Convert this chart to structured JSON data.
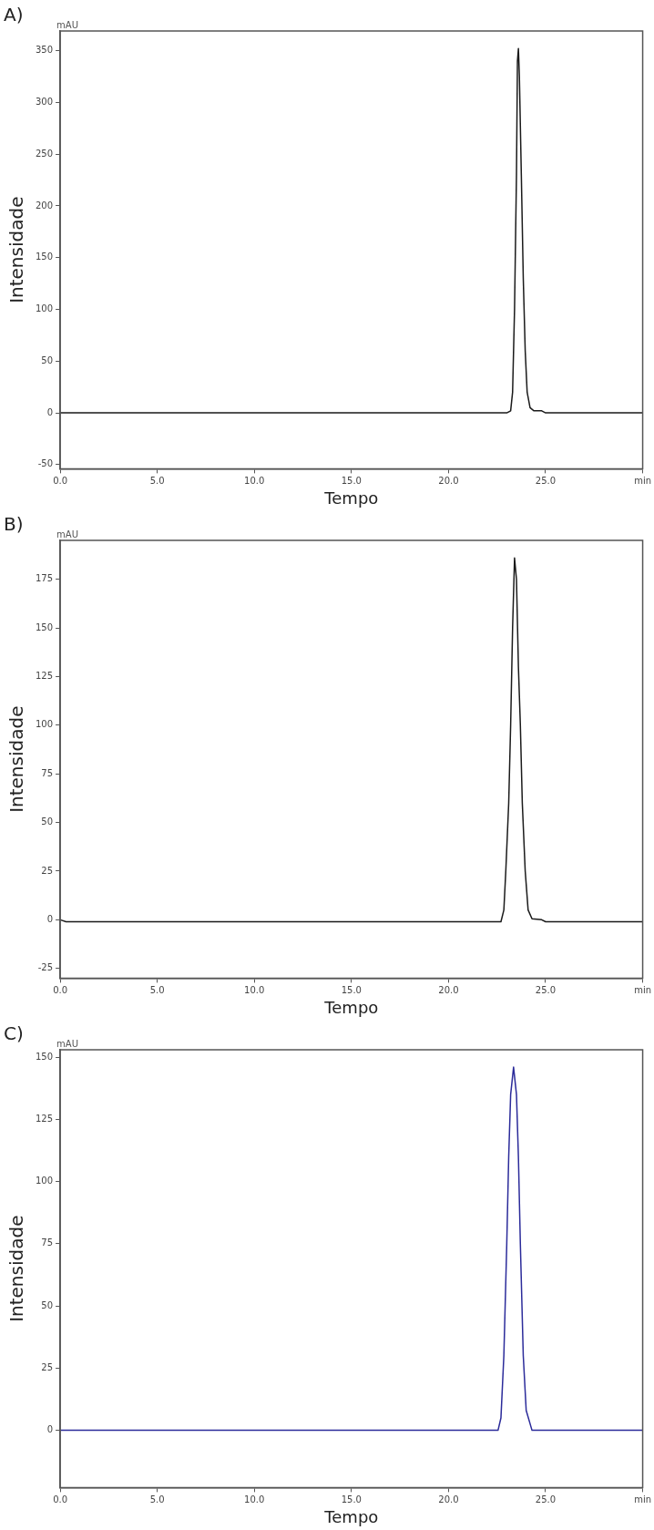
{
  "chart_data": [
    {
      "type": "line",
      "title": "A)",
      "xlabel": "Tempo",
      "ylabel": "Intensidade",
      "annotations": [
        "mAU"
      ],
      "series": [
        {
          "color": "#1a1a1a",
          "x": [
            0,
            23.0,
            23.2,
            23.3,
            23.4,
            23.5,
            23.55,
            23.6,
            23.65,
            23.75,
            23.85,
            23.95,
            24.05,
            24.2,
            24.4,
            24.8,
            25.0,
            30
          ],
          "values": [
            0,
            0,
            2,
            20,
            100,
            230,
            340,
            352,
            325,
            230,
            130,
            60,
            20,
            5,
            2,
            2,
            0,
            0
          ]
        }
      ],
      "xlim": [
        0,
        30
      ],
      "xticks": [
        {
          "value": 0,
          "label": "0.0"
        },
        {
          "value": 5,
          "label": "5.0"
        },
        {
          "value": 10,
          "label": "10.0"
        },
        {
          "value": 15,
          "label": "15.0"
        },
        {
          "value": 20,
          "label": "20.0"
        },
        {
          "value": 25,
          "label": "25.0"
        },
        {
          "value": 30,
          "label": "min"
        }
      ],
      "ylim": [
        -54,
        369
      ],
      "yticks": [
        -50,
        0,
        50,
        100,
        150,
        200,
        250,
        300,
        350
      ],
      "grid": false,
      "legend": false,
      "marker": "none",
      "line_style": "solid"
    },
    {
      "type": "line",
      "title": "B)",
      "xlabel": "Tempo",
      "ylabel": "Intensidade",
      "annotations": [
        "mAU"
      ],
      "series": [
        {
          "color": "#1a1a1a",
          "x": [
            0,
            0.3,
            22.7,
            22.85,
            22.95,
            23.1,
            23.2,
            23.3,
            23.4,
            23.5,
            23.6,
            23.7,
            23.8,
            23.95,
            24.1,
            24.3,
            24.8,
            25.0,
            30
          ],
          "values": [
            0,
            -1,
            -1,
            5,
            25,
            60,
            100,
            150,
            186,
            175,
            130,
            100,
            60,
            25,
            5,
            0.5,
            0,
            -1,
            -1
          ]
        }
      ],
      "xlim": [
        0,
        30
      ],
      "xticks": [
        {
          "value": 0,
          "label": "0.0"
        },
        {
          "value": 5,
          "label": "5.0"
        },
        {
          "value": 10,
          "label": "10.0"
        },
        {
          "value": 15,
          "label": "15.0"
        },
        {
          "value": 20,
          "label": "20.0"
        },
        {
          "value": 25,
          "label": "25.0"
        },
        {
          "value": 30,
          "label": "min"
        }
      ],
      "ylim": [
        -30,
        195
      ],
      "yticks": [
        -25,
        0,
        25,
        50,
        75,
        100,
        125,
        150,
        175
      ],
      "grid": false,
      "legend": false,
      "marker": "none",
      "line_style": "solid"
    },
    {
      "type": "line",
      "title": "C)",
      "xlabel": "Tempo",
      "ylabel": "Intensidade",
      "annotations": [
        "mAU"
      ],
      "series": [
        {
          "color": "#2b2b9a",
          "x": [
            0,
            22.55,
            22.7,
            22.85,
            23.0,
            23.1,
            23.2,
            23.35,
            23.5,
            23.6,
            23.7,
            23.85,
            24.0,
            24.3,
            30
          ],
          "values": [
            0,
            0,
            5,
            30,
            75,
            110,
            135,
            146,
            135,
            110,
            75,
            30,
            8,
            0,
            0
          ]
        }
      ],
      "xlim": [
        0,
        30
      ],
      "xticks": [
        {
          "value": 0,
          "label": "0.0"
        },
        {
          "value": 5,
          "label": "5.0"
        },
        {
          "value": 10,
          "label": "10.0"
        },
        {
          "value": 15,
          "label": "15.0"
        },
        {
          "value": 20,
          "label": "20.0"
        },
        {
          "value": 25,
          "label": "25.0"
        },
        {
          "value": 30,
          "label": "min"
        }
      ],
      "ylim": [
        -23,
        153
      ],
      "yticks": [
        0,
        25,
        50,
        75,
        100,
        125,
        150
      ],
      "grid": false,
      "legend": false,
      "marker": "none",
      "line_style": "solid"
    }
  ]
}
